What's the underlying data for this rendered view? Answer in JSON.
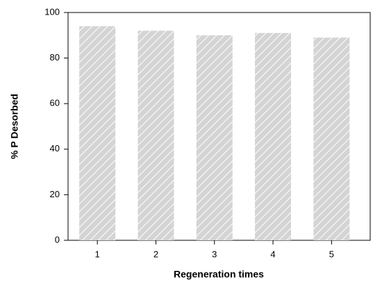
{
  "chart_data": {
    "type": "bar",
    "x_label": "Regeneration times",
    "y_label": "% P Desorbed",
    "categories": [
      "1",
      "2",
      "3",
      "4",
      "5"
    ],
    "values": [
      94,
      92,
      90,
      91,
      89
    ],
    "color": "#d4d4d4",
    "ylim": [
      0,
      100
    ],
    "yticks": [
      0,
      20,
      40,
      60,
      80,
      100
    ],
    "grid": false
  }
}
